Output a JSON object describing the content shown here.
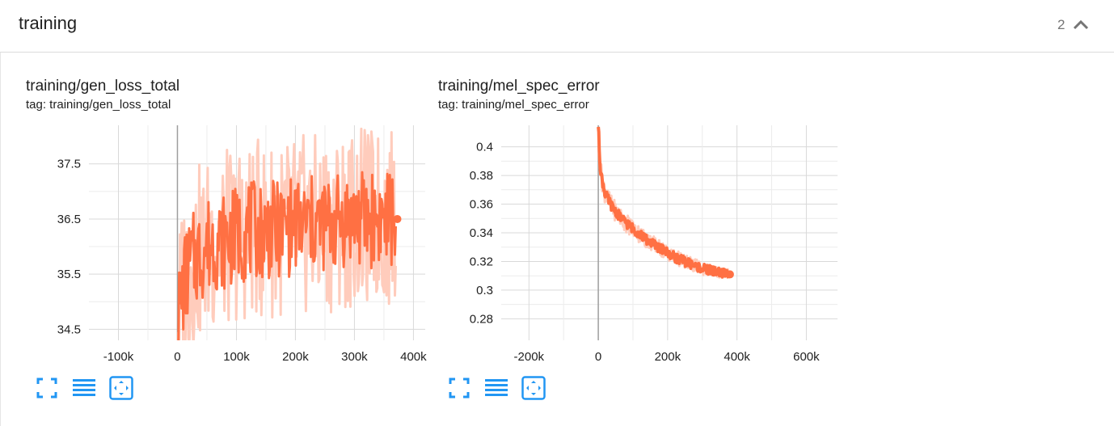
{
  "section": {
    "title": "training",
    "count": "2",
    "collapse_icon": "chevron-up-icon"
  },
  "colors": {
    "series": "#ff7043",
    "series_raw": "#ffccbc",
    "grid": "#d9d9d9",
    "zero_axis": "#9e9e9e",
    "icon": "#2196f3"
  },
  "cards": [
    {
      "title": "training/gen_loss_total",
      "tag": "tag: training/gen_loss_total",
      "toolbar": [
        "fullscreen-icon",
        "log-scale-icon",
        "fit-domain-icon"
      ],
      "chart_data": {
        "type": "line",
        "x_ticks": [
          "-100k",
          "0",
          "100k",
          "200k",
          "300k",
          "400k"
        ],
        "y_ticks": [
          "34.5",
          "35.5",
          "36.5",
          "37.5"
        ],
        "xlim": [
          -150000,
          420000
        ],
        "ylim": [
          34.3,
          38.2
        ],
        "grid": true,
        "series": [
          {
            "x": [
              0,
              10000,
              20000,
              30000,
              40000,
              50000,
              60000,
              80000,
              100000,
              120000,
              140000,
              160000,
              180000,
              200000,
              220000,
              240000,
              260000,
              280000,
              300000,
              320000,
              340000,
              360000,
              370000
            ],
            "y": [
              34.6,
              35.3,
              35.6,
              35.8,
              35.9,
              36.0,
              36.1,
              36.1,
              36.2,
              36.3,
              36.3,
              36.3,
              36.3,
              36.4,
              36.4,
              36.4,
              36.4,
              36.5,
              36.5,
              36.5,
              36.5,
              36.5,
              36.5
            ]
          }
        ]
      }
    },
    {
      "title": "training/mel_spec_error",
      "tag": "tag: training/mel_spec_error",
      "toolbar": [
        "fullscreen-icon",
        "log-scale-icon",
        "fit-domain-icon"
      ],
      "chart_data": {
        "type": "line",
        "x_ticks": [
          "-200k",
          "0",
          "200k",
          "400k",
          "600k"
        ],
        "y_ticks": [
          "0.28",
          "0.3",
          "0.32",
          "0.34",
          "0.36",
          "0.38",
          "0.4"
        ],
        "xlim": [
          -280000,
          690000
        ],
        "ylim": [
          0.265,
          0.415
        ],
        "grid": true,
        "series": [
          {
            "x": [
              0,
              5000,
              10000,
              20000,
              40000,
              60000,
              80000,
              100000,
              120000,
              140000,
              160000,
              180000,
              200000,
              220000,
              240000,
              260000,
              280000,
              300000,
              320000,
              340000,
              360000,
              375000
            ],
            "y": [
              0.415,
              0.388,
              0.378,
              0.367,
              0.358,
              0.352,
              0.347,
              0.343,
              0.339,
              0.335,
              0.332,
              0.329,
              0.326,
              0.323,
              0.321,
              0.319,
              0.317,
              0.315,
              0.314,
              0.313,
              0.312,
              0.311
            ]
          }
        ]
      }
    }
  ]
}
